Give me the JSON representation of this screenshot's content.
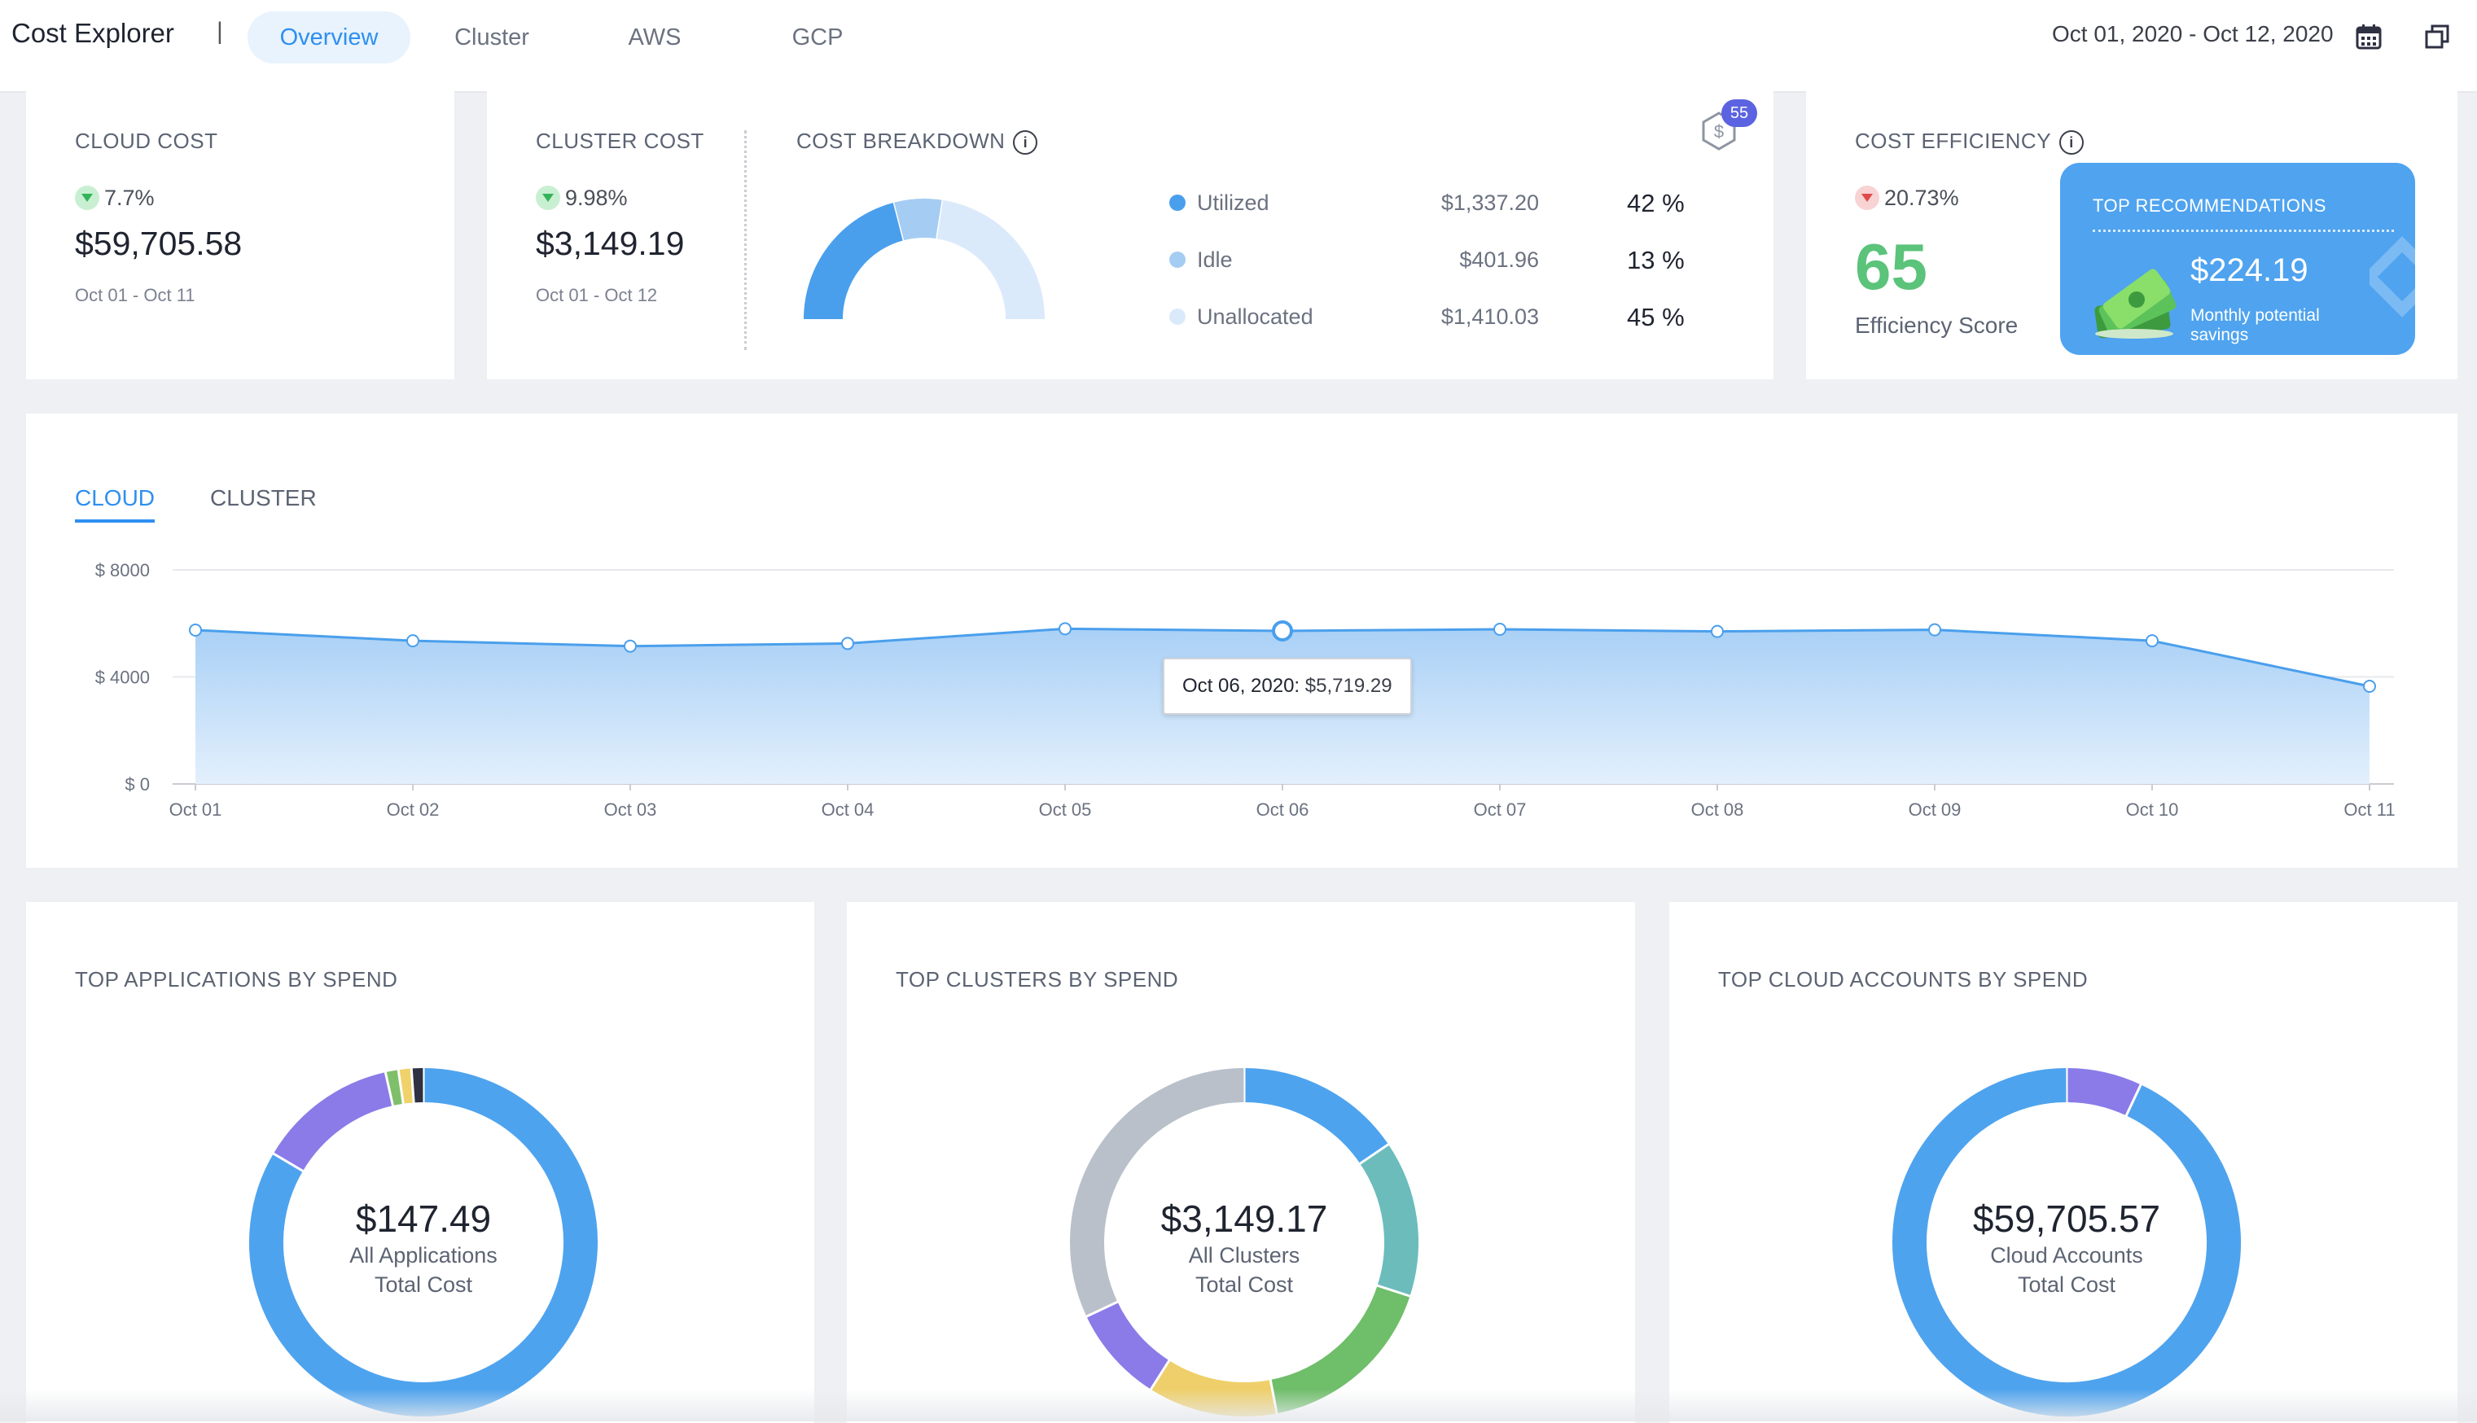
{
  "header": {
    "title": "Cost Explorer",
    "separator": "|",
    "tabs": [
      {
        "label": "Overview",
        "active": true
      },
      {
        "label": "Cluster",
        "active": false
      },
      {
        "label": "AWS",
        "active": false
      },
      {
        "label": "GCP",
        "active": false
      }
    ],
    "date_range": "Oct 01, 2020 - Oct 12, 2020",
    "icons": {
      "calendar": "calendar-icon",
      "window": "window-icon"
    }
  },
  "cloud_cost": {
    "title": "CLOUD COST",
    "trend": "7.7%",
    "trend_direction": "down",
    "value": "$59,705.58",
    "date": "Oct 01 - Oct 11"
  },
  "cluster_cost": {
    "title": "CLUSTER COST",
    "trend": "9.98%",
    "trend_direction": "down",
    "value": "$3,149.19",
    "date": "Oct 01 - Oct 12"
  },
  "cost_breakdown": {
    "title": "COST BREAKDOWN",
    "badge_count": "55",
    "items": [
      {
        "label": "Utilized",
        "value": "$1,337.20",
        "pct": "42 %",
        "fraction": 0.42,
        "color": "#4a9fec"
      },
      {
        "label": "Idle",
        "value": "$401.96",
        "pct": "13 %",
        "fraction": 0.13,
        "color": "#a5cdf3"
      },
      {
        "label": "Unallocated",
        "value": "$1,410.03",
        "pct": "45 %",
        "fraction": 0.45,
        "color": "#dbeafb"
      }
    ]
  },
  "cost_efficiency": {
    "title": "COST EFFICIENCY",
    "trend": "20.73%",
    "trend_direction": "down",
    "score": "65",
    "score_label": "Efficiency Score",
    "recommendations": {
      "title": "TOP RECOMMENDATIONS",
      "value": "$224.19",
      "subtitle": "Monthly potential savings"
    }
  },
  "trend_chart": {
    "tabs": [
      {
        "label": "CLOUD",
        "active": true
      },
      {
        "label": "CLUSTER",
        "active": false
      }
    ],
    "tooltip": {
      "date": "Oct 06, 2020:",
      "value": "$5,719.29"
    }
  },
  "chart_data": {
    "type": "area",
    "x": [
      "Oct 01",
      "Oct 02",
      "Oct 03",
      "Oct 04",
      "Oct 05",
      "Oct 06",
      "Oct 07",
      "Oct 08",
      "Oct 09",
      "Oct 10",
      "Oct 11"
    ],
    "series": [
      {
        "values": [
          5750,
          5350,
          5150,
          5250,
          5800,
          5719.29,
          5780,
          5700,
          5760,
          5350,
          3650
        ]
      }
    ],
    "yticks": [
      "$ 8000",
      "$ 4000",
      "$ 0"
    ],
    "ytick_values": [
      8000,
      4000,
      0
    ],
    "ylim": [
      0,
      8000
    ],
    "grid": true,
    "highlight_index": 5
  },
  "top_applications": {
    "title": "TOP APPLICATIONS BY SPEND",
    "total": "$147.49",
    "label1": "All Applications",
    "label2": "Total Cost",
    "segments": [
      {
        "fraction": 0.835,
        "color": "#4ea3ee"
      },
      {
        "fraction": 0.13,
        "color": "#8a7be8"
      },
      {
        "fraction": 0.012,
        "color": "#7fbf6a"
      },
      {
        "fraction": 0.012,
        "color": "#efd26a"
      },
      {
        "fraction": 0.011,
        "color": "#2d3142"
      }
    ]
  },
  "top_clusters": {
    "title": "TOP CLUSTERS BY SPEND",
    "total": "$3,149.17",
    "label1": "All Clusters",
    "label2": "Total Cost",
    "segments": [
      {
        "fraction": 0.155,
        "color": "#4ea3ee"
      },
      {
        "fraction": 0.145,
        "color": "#6cbcbc"
      },
      {
        "fraction": 0.17,
        "color": "#6fbe6a"
      },
      {
        "fraction": 0.12,
        "color": "#efcf6a"
      },
      {
        "fraction": 0.09,
        "color": "#8a7be8"
      },
      {
        "fraction": 0.32,
        "color": "#b9c0c9"
      }
    ]
  },
  "top_cloud_accounts": {
    "title": "TOP CLOUD ACCOUNTS BY SPEND",
    "total": "$59,705.57",
    "label1": "Cloud Accounts",
    "label2": "Total Cost",
    "segments": [
      {
        "fraction": 0.07,
        "color": "#8a7be8"
      },
      {
        "fraction": 0.93,
        "color": "#4ea3ee"
      }
    ]
  }
}
